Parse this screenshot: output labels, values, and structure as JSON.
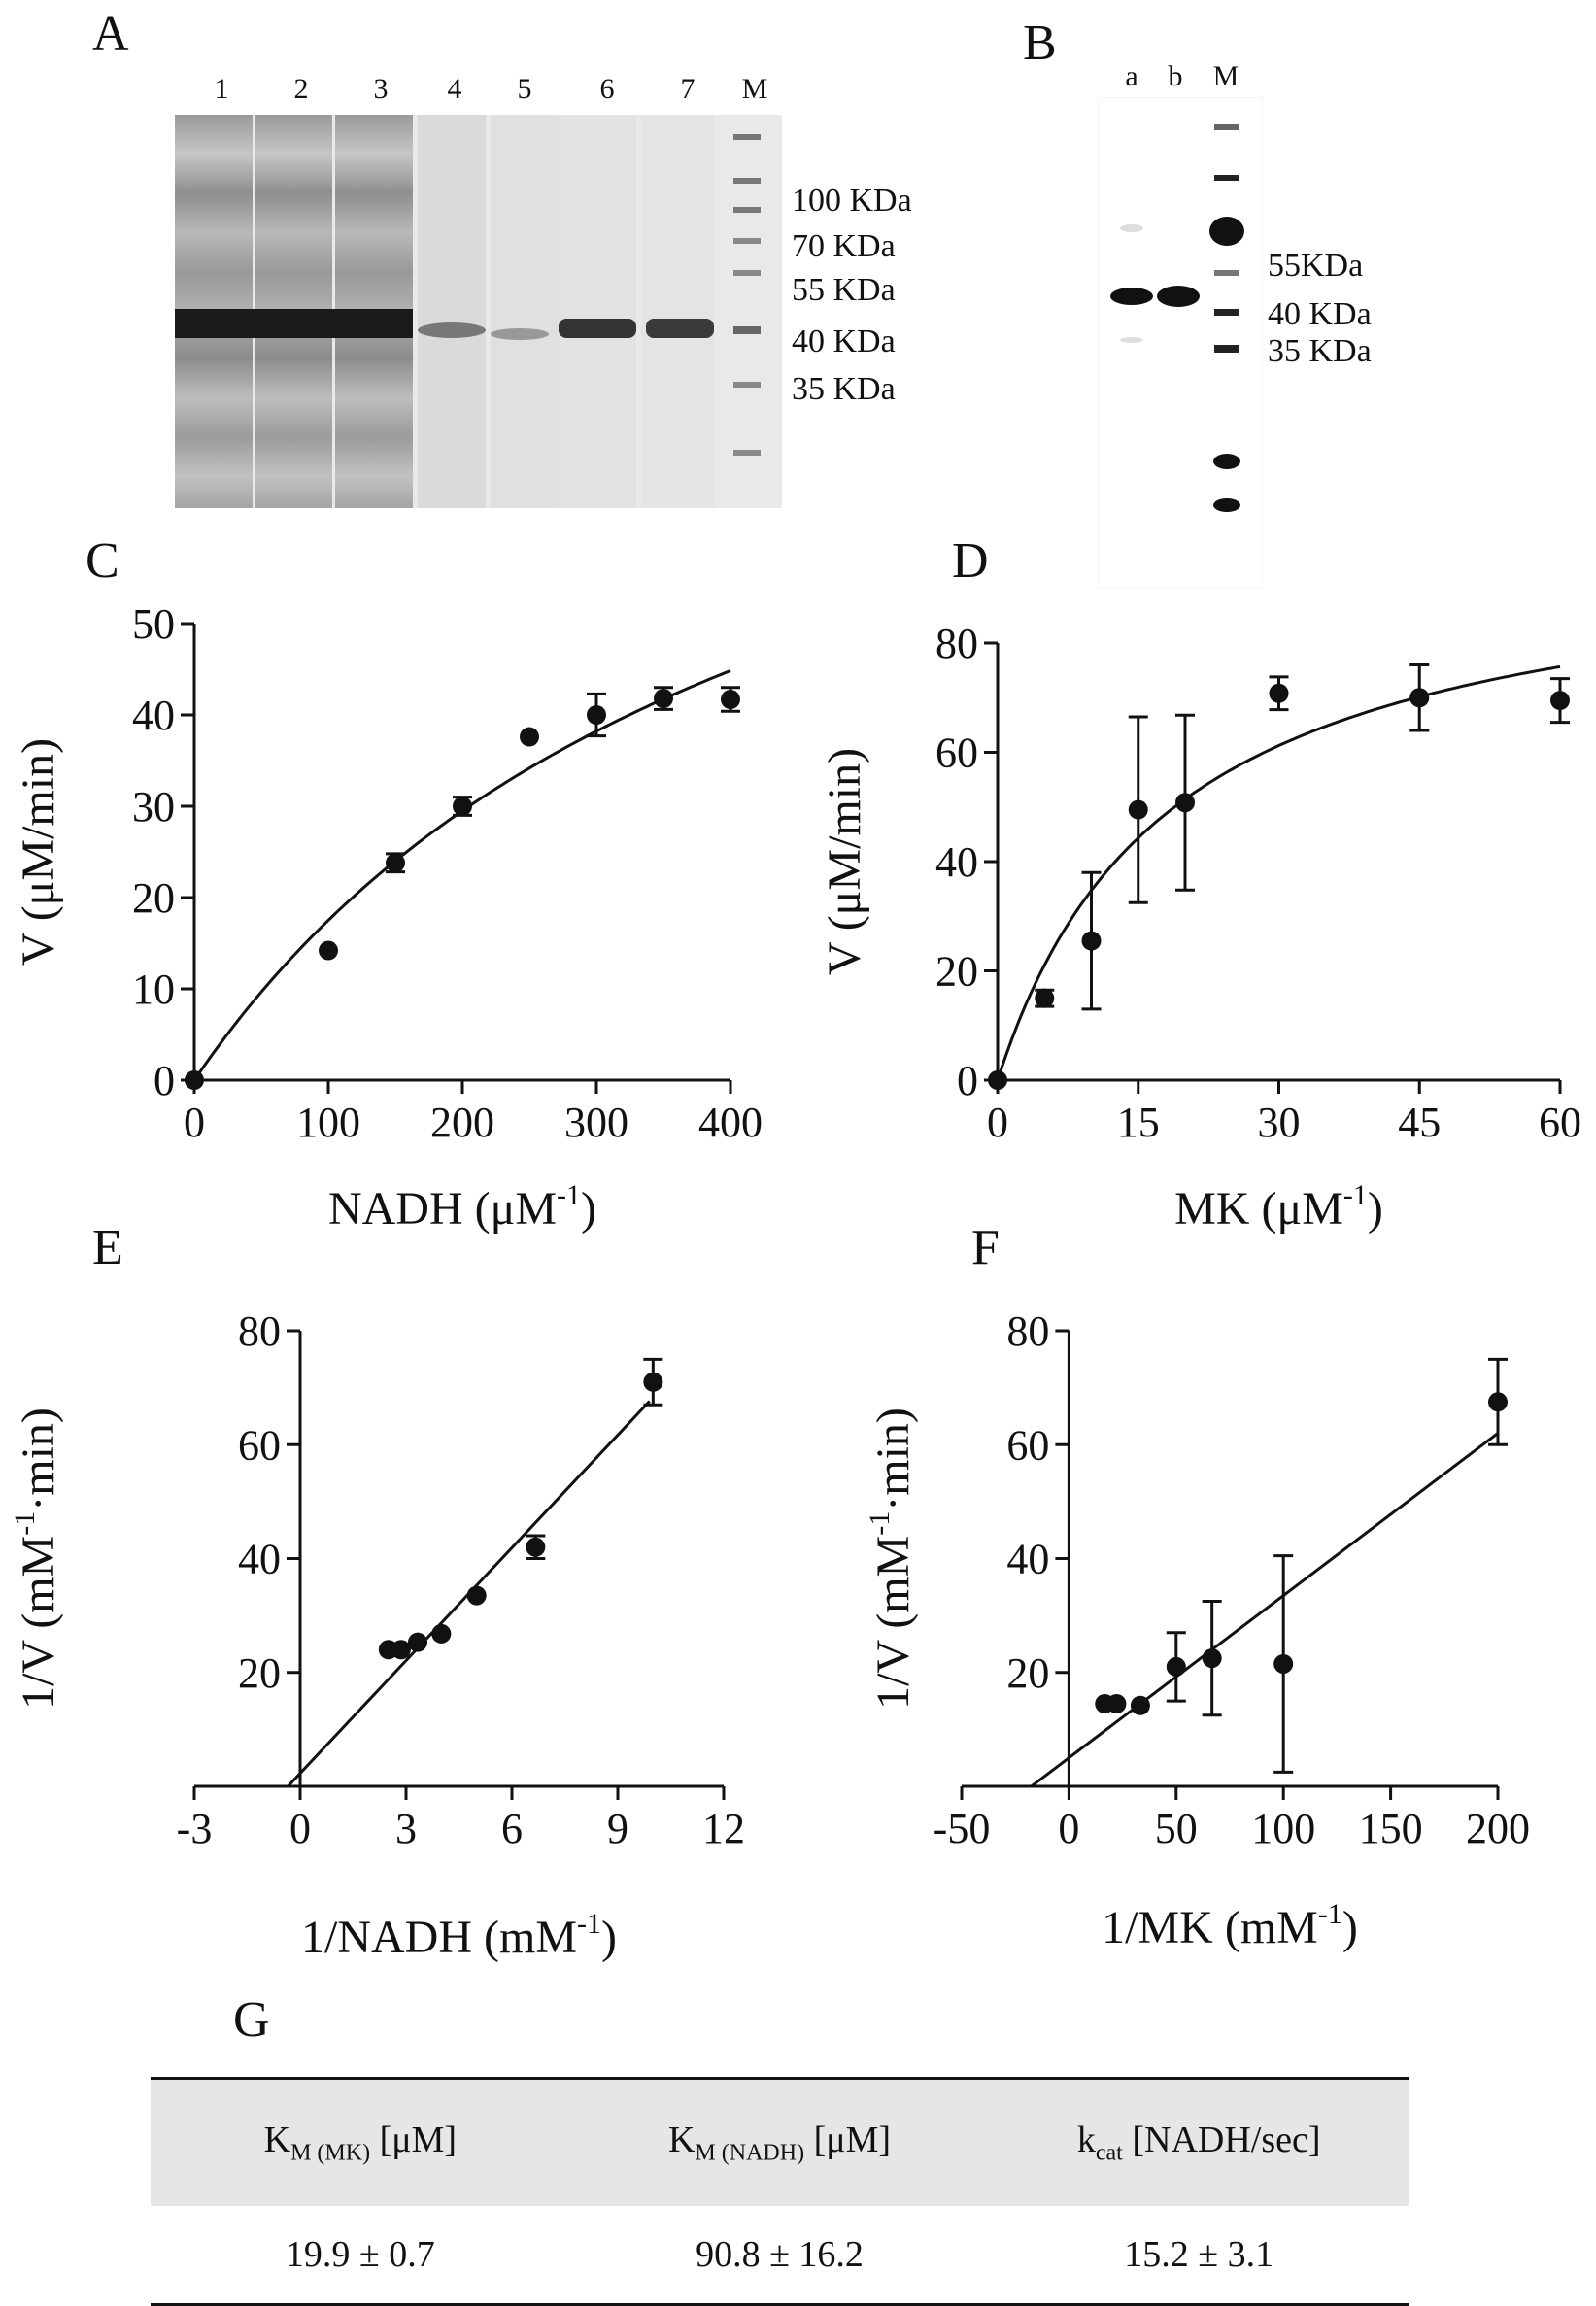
{
  "panels": {
    "A": "A",
    "B": "B",
    "C": "C",
    "D": "D",
    "E": "E",
    "F": "F",
    "G": "G"
  },
  "gelA": {
    "lanes": [
      "1",
      "2",
      "3",
      "4",
      "5",
      "6",
      "7",
      "M"
    ],
    "markers": [
      "100 KDa",
      "70 KDa",
      "55 KDa",
      "40 KDa",
      "35 KDa"
    ]
  },
  "blotB": {
    "lanes": [
      "a",
      "b",
      "M"
    ],
    "markers": [
      "55KDa",
      "40 KDa",
      "35 KDa"
    ]
  },
  "chart_data": [
    {
      "id": "C",
      "type": "scatter",
      "xlabel": "NADH (μM",
      "xlabel_sup": "-1",
      "xlabel_end": ")",
      "ylabel": "V (μM/min)",
      "xlim": [
        0,
        400
      ],
      "ylim": [
        0,
        50
      ],
      "xticks": [
        0,
        100,
        200,
        300,
        400
      ],
      "yticks": [
        0,
        10,
        20,
        30,
        40,
        50
      ],
      "points": [
        {
          "x": 0,
          "y": 0,
          "err": 0
        },
        {
          "x": 100,
          "y": 14.2,
          "err": 0
        },
        {
          "x": 150,
          "y": 23.8,
          "err": 1
        },
        {
          "x": 200,
          "y": 30,
          "err": 1
        },
        {
          "x": 250,
          "y": 37.6,
          "err": 0
        },
        {
          "x": 300,
          "y": 40,
          "err": 2.3
        },
        {
          "x": 350,
          "y": 41.8,
          "err": 1.2
        },
        {
          "x": 400,
          "y": 41.7,
          "err": 1.3
        }
      ],
      "fit": {
        "kind": "mm",
        "vmax": 93.5,
        "km": 434
      }
    },
    {
      "id": "D",
      "type": "scatter",
      "xlabel": "MK (μM",
      "xlabel_sup": "-1",
      "xlabel_end": ")",
      "ylabel": "V (μM/min)",
      "xlim": [
        0,
        60
      ],
      "ylim": [
        0,
        80
      ],
      "xticks": [
        0,
        15,
        30,
        45,
        60
      ],
      "yticks": [
        0,
        20,
        40,
        60,
        80
      ],
      "points": [
        {
          "x": 0,
          "y": 0,
          "err": 0
        },
        {
          "x": 5,
          "y": 15,
          "err": 1.5
        },
        {
          "x": 10,
          "y": 25.5,
          "err": 12.5
        },
        {
          "x": 15,
          "y": 49.5,
          "err": 17
        },
        {
          "x": 20,
          "y": 50.8,
          "err": 16
        },
        {
          "x": 30,
          "y": 70.8,
          "err": 3
        },
        {
          "x": 45,
          "y": 70,
          "err": 6
        },
        {
          "x": 60,
          "y": 69.5,
          "err": 4
        }
      ],
      "fit": {
        "kind": "mm",
        "vmax": 99,
        "km": 18.5
      }
    },
    {
      "id": "E",
      "type": "scatter",
      "xlabel": "1/NADH (mM",
      "xlabel_sup": "-1",
      "xlabel_end": ")",
      "ylabel": "1/V (mM",
      "ylabel_sup": "-1",
      "ylabel_end": "·min)",
      "xlim": [
        -3,
        12
      ],
      "ylim": [
        0,
        80
      ],
      "xticks": [
        -3,
        0,
        3,
        6,
        9,
        12
      ],
      "yticks": [
        20,
        40,
        60,
        80
      ],
      "points": [
        {
          "x": 2.5,
          "y": 24,
          "err": 0
        },
        {
          "x": 2.86,
          "y": 24,
          "err": 0
        },
        {
          "x": 3.33,
          "y": 25.3,
          "err": 0
        },
        {
          "x": 4,
          "y": 26.8,
          "err": 0
        },
        {
          "x": 5,
          "y": 33.5,
          "err": 0
        },
        {
          "x": 6.67,
          "y": 42,
          "err": 2
        },
        {
          "x": 10,
          "y": 71,
          "err": 4
        }
      ],
      "fit": {
        "kind": "line",
        "slope": 6.6,
        "intercept": 2.3,
        "x0": -0.35,
        "x1": 9.9
      }
    },
    {
      "id": "F",
      "type": "scatter",
      "xlabel": "1/MK (mM",
      "xlabel_sup": "-1",
      "xlabel_end": ")",
      "ylabel": "1/V (mM",
      "ylabel_sup": "-1",
      "ylabel_end": "·min)",
      "xlim": [
        -50,
        200
      ],
      "ylim": [
        0,
        80
      ],
      "xticks": [
        -50,
        0,
        50,
        100,
        150,
        200
      ],
      "yticks": [
        20,
        40,
        60,
        80
      ],
      "points": [
        {
          "x": 16.7,
          "y": 14.5,
          "err": 0
        },
        {
          "x": 22.2,
          "y": 14.5,
          "err": 0
        },
        {
          "x": 33.3,
          "y": 14.2,
          "err": 0
        },
        {
          "x": 50,
          "y": 21,
          "err": 6
        },
        {
          "x": 66.7,
          "y": 22.5,
          "err": 10
        },
        {
          "x": 100,
          "y": 21.5,
          "err": 19
        },
        {
          "x": 200,
          "y": 67.5,
          "err": 7.5
        }
      ],
      "fit": {
        "kind": "line",
        "slope": 0.285,
        "intercept": 5.0,
        "x0": -17.5,
        "x1": 200
      }
    }
  ],
  "tableG": {
    "headers": [
      {
        "main": "K",
        "sub": "M (MK)",
        "unit": " [μM]"
      },
      {
        "main": "K",
        "sub": "M (NADH)",
        "unit": " [μM]"
      },
      {
        "main": "k",
        "sub": "cat",
        "unit": " [NADH/sec]"
      }
    ],
    "values": [
      "19.9 ± 0.7",
      "90.8 ± 16.2",
      "15.2 ± 3.1"
    ]
  }
}
